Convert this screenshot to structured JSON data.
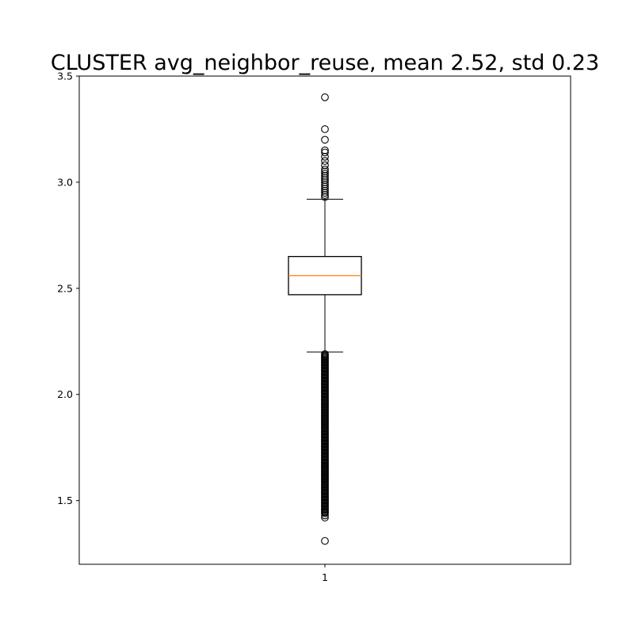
{
  "chart_data": {
    "type": "box",
    "title": "CLUSTER avg_neighbor_reuse, mean 2.52, std 0.23",
    "xlabel": "",
    "ylabel": "",
    "categories": [
      "1"
    ],
    "ylim": [
      1.2,
      3.5
    ],
    "yticks": [
      1.5,
      2.0,
      2.5,
      3.0,
      3.5
    ],
    "ytick_labels": [
      "1.5",
      "2.0",
      "2.5",
      "3.0",
      "3.5"
    ],
    "grid": false,
    "box": {
      "whisker_low": 2.2,
      "q1": 2.47,
      "median": 2.56,
      "q3": 2.65,
      "whisker_high": 2.92
    },
    "outliers_high": [
      3.4,
      3.25,
      3.2,
      3.15,
      3.14,
      3.12,
      3.1,
      3.08,
      3.06,
      3.05,
      3.04,
      3.03,
      3.02,
      3.01,
      3.0,
      2.99,
      2.98,
      2.97,
      2.96,
      2.95,
      2.94,
      2.93
    ],
    "outliers_low_range": [
      1.44,
      2.19
    ],
    "outliers_low_extra": [
      1.43,
      1.42,
      1.31
    ],
    "colors": {
      "box": "#000000",
      "median": "#ff7f0e",
      "outlier_edge": "#000000"
    }
  }
}
